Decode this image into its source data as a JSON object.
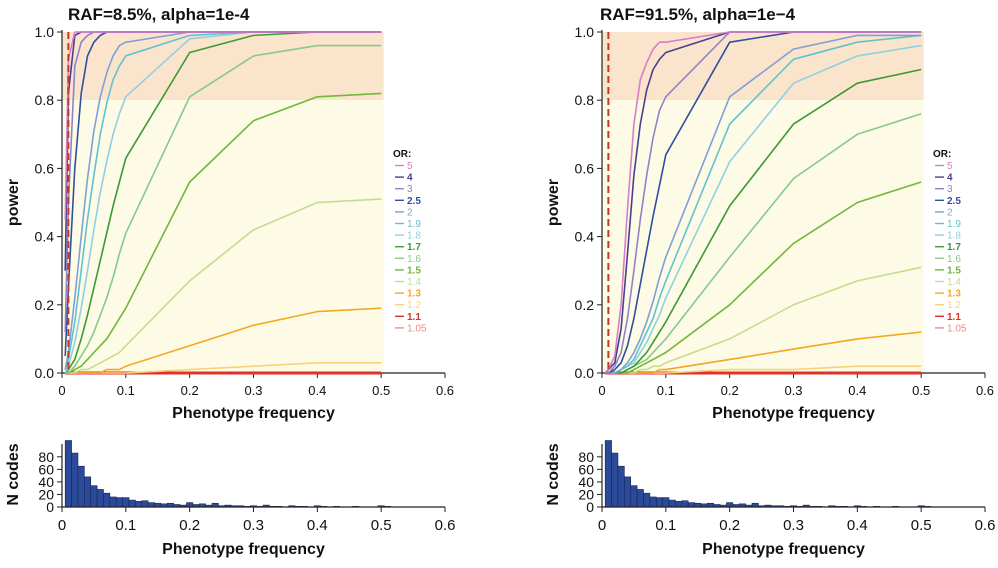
{
  "figure": {
    "panels": [
      {
        "title": "RAF=8.5%, alpha=1e-4"
      },
      {
        "title": "RAF=91.5%, alpha=1e−4"
      }
    ]
  },
  "chart_data": [
    {
      "type": "line",
      "title": "RAF=8.5%, alpha=1e-4",
      "xlabel": "Phenotype frequency",
      "ylabel": "power",
      "xlim": [
        0,
        0.6
      ],
      "ylim": [
        0,
        1.0
      ],
      "xticks": [
        "0",
        "0.1",
        "0.2",
        "0.3",
        "0.4",
        "0.5",
        "0.6"
      ],
      "yticks": [
        "0.0",
        "0.2",
        "0.4",
        "0.6",
        "0.8",
        "1.0"
      ],
      "shaded_bands": [
        {
          "y_from": 0.8,
          "y_to": 1.0,
          "color": "#fbe4cc"
        },
        {
          "y_from": 0.0,
          "y_to": 0.8,
          "color": "#fdfbe6"
        }
      ],
      "vline": {
        "x": 0.01,
        "color": "#c0392b",
        "style": "dashed"
      },
      "legend": {
        "title": "OR:",
        "position": "right"
      },
      "x": [
        0.005,
        0.01,
        0.02,
        0.03,
        0.04,
        0.05,
        0.06,
        0.07,
        0.08,
        0.09,
        0.1,
        0.2,
        0.3,
        0.4,
        0.5
      ],
      "series": [
        {
          "name": "5",
          "color": "#d67fc6",
          "values": [
            0.45,
            0.92,
            1.0,
            1.0,
            1.0,
            1.0,
            1.0,
            1.0,
            1.0,
            1.0,
            1.0,
            1.0,
            1.0,
            1.0,
            1.0
          ]
        },
        {
          "name": "4",
          "color": "#4a3f8f",
          "values": [
            0.3,
            0.82,
            0.99,
            1.0,
            1.0,
            1.0,
            1.0,
            1.0,
            1.0,
            1.0,
            1.0,
            1.0,
            1.0,
            1.0,
            1.0
          ]
        },
        {
          "name": "3",
          "color": "#8e83c9",
          "values": [
            0.12,
            0.5,
            0.9,
            0.97,
            0.99,
            1.0,
            1.0,
            1.0,
            1.0,
            1.0,
            1.0,
            1.0,
            1.0,
            1.0,
            1.0
          ]
        },
        {
          "name": "2.5",
          "color": "#2f4fa0",
          "values": [
            0.05,
            0.25,
            0.6,
            0.82,
            0.93,
            0.97,
            0.99,
            1.0,
            1.0,
            1.0,
            1.0,
            1.0,
            1.0,
            1.0,
            1.0
          ]
        },
        {
          "name": "2",
          "color": "#7f9fd9",
          "values": [
            0.01,
            0.06,
            0.22,
            0.4,
            0.57,
            0.71,
            0.81,
            0.88,
            0.93,
            0.96,
            0.97,
            1.0,
            1.0,
            1.0,
            1.0
          ]
        },
        {
          "name": "1.9",
          "color": "#5fc3cf",
          "values": [
            0.01,
            0.04,
            0.15,
            0.3,
            0.45,
            0.58,
            0.7,
            0.79,
            0.86,
            0.9,
            0.93,
            0.99,
            1.0,
            1.0,
            1.0
          ]
        },
        {
          "name": "1.8",
          "color": "#8fd0e3",
          "values": [
            0.0,
            0.02,
            0.09,
            0.19,
            0.3,
            0.42,
            0.53,
            0.62,
            0.7,
            0.76,
            0.81,
            0.98,
            1.0,
            1.0,
            1.0
          ]
        },
        {
          "name": "1.7",
          "color": "#3a9a34",
          "values": [
            0.0,
            0.01,
            0.04,
            0.1,
            0.17,
            0.25,
            0.33,
            0.41,
            0.49,
            0.56,
            0.63,
            0.94,
            0.99,
            1.0,
            1.0
          ]
        },
        {
          "name": "1.6",
          "color": "#86c98a",
          "values": [
            0.0,
            0.0,
            0.02,
            0.05,
            0.08,
            0.12,
            0.17,
            0.22,
            0.28,
            0.35,
            0.41,
            0.81,
            0.93,
            0.96,
            0.96
          ]
        },
        {
          "name": "1.5",
          "color": "#6fb83a",
          "values": [
            0.0,
            0.0,
            0.01,
            0.02,
            0.04,
            0.06,
            0.08,
            0.1,
            0.13,
            0.16,
            0.19,
            0.56,
            0.74,
            0.81,
            0.82
          ]
        },
        {
          "name": "1.4",
          "color": "#c3dd8c",
          "values": [
            0.0,
            0.0,
            0.0,
            0.01,
            0.01,
            0.02,
            0.03,
            0.04,
            0.05,
            0.06,
            0.08,
            0.27,
            0.42,
            0.5,
            0.51
          ]
        },
        {
          "name": "1.3",
          "color": "#f5a623",
          "values": [
            0.0,
            0.0,
            0.0,
            0.0,
            0.0,
            0.0,
            0.0,
            0.01,
            0.01,
            0.01,
            0.02,
            0.08,
            0.14,
            0.18,
            0.19
          ]
        },
        {
          "name": "1.2",
          "color": "#f8d27a",
          "values": [
            0.0,
            0.0,
            0.0,
            0.0,
            0.0,
            0.0,
            0.0,
            0.0,
            0.0,
            0.0,
            0.0,
            0.01,
            0.02,
            0.03,
            0.03
          ]
        },
        {
          "name": "1.1",
          "color": "#e0302a",
          "values": [
            0.0,
            0.0,
            0.0,
            0.0,
            0.0,
            0.0,
            0.0,
            0.0,
            0.0,
            0.0,
            0.0,
            0.0,
            0.0,
            0.0,
            0.0
          ]
        },
        {
          "name": "1.05",
          "color": "#f08a8a",
          "values": [
            0.0,
            0.0,
            0.0,
            0.0,
            0.0,
            0.0,
            0.0,
            0.0,
            0.0,
            0.0,
            0.0,
            0.0,
            0.0,
            0.0,
            0.0
          ]
        }
      ]
    },
    {
      "type": "line",
      "title": "RAF=91.5%, alpha=1e−4",
      "xlabel": "Phenotype frequency",
      "ylabel": "power",
      "xlim": [
        0,
        0.6
      ],
      "ylim": [
        0,
        1.0
      ],
      "xticks": [
        "0",
        "0.1",
        "0.2",
        "0.3",
        "0.4",
        "0.5",
        "0.6"
      ],
      "yticks": [
        "0.0",
        "0.2",
        "0.4",
        "0.6",
        "0.8",
        "1.0"
      ],
      "shaded_bands": [
        {
          "y_from": 0.8,
          "y_to": 1.0,
          "color": "#fbe4cc"
        },
        {
          "y_from": 0.0,
          "y_to": 0.8,
          "color": "#fdfbe6"
        }
      ],
      "vline": {
        "x": 0.01,
        "color": "#c0392b",
        "style": "dashed"
      },
      "legend": {
        "title": "OR:",
        "position": "right"
      },
      "x": [
        0.005,
        0.01,
        0.02,
        0.03,
        0.04,
        0.05,
        0.06,
        0.07,
        0.08,
        0.09,
        0.1,
        0.2,
        0.3,
        0.4,
        0.5
      ],
      "series": [
        {
          "name": "5",
          "color": "#d67fc6",
          "values": [
            0.0,
            0.01,
            0.05,
            0.2,
            0.48,
            0.73,
            0.86,
            0.91,
            0.95,
            0.97,
            0.97,
            1.0,
            1.0,
            1.0,
            1.0
          ]
        },
        {
          "name": "4",
          "color": "#4a3f8f",
          "values": [
            0.0,
            0.01,
            0.03,
            0.13,
            0.35,
            0.58,
            0.73,
            0.83,
            0.89,
            0.92,
            0.94,
            1.0,
            1.0,
            1.0,
            1.0
          ]
        },
        {
          "name": "3",
          "color": "#8e83c9",
          "values": [
            0.0,
            0.0,
            0.02,
            0.06,
            0.16,
            0.3,
            0.45,
            0.58,
            0.69,
            0.77,
            0.81,
            1.0,
            1.0,
            1.0,
            1.0
          ]
        },
        {
          "name": "2.5",
          "color": "#2f4fa0",
          "values": [
            0.0,
            0.0,
            0.01,
            0.03,
            0.08,
            0.16,
            0.26,
            0.36,
            0.46,
            0.55,
            0.64,
            0.97,
            1.0,
            1.0,
            1.0
          ]
        },
        {
          "name": "2",
          "color": "#7f9fd9",
          "values": [
            0.0,
            0.0,
            0.0,
            0.01,
            0.03,
            0.06,
            0.1,
            0.15,
            0.21,
            0.28,
            0.34,
            0.81,
            0.95,
            0.99,
            0.99
          ]
        },
        {
          "name": "1.9",
          "color": "#5fc3cf",
          "values": [
            0.0,
            0.0,
            0.0,
            0.01,
            0.02,
            0.04,
            0.08,
            0.12,
            0.16,
            0.22,
            0.27,
            0.73,
            0.92,
            0.97,
            0.99
          ]
        },
        {
          "name": "1.8",
          "color": "#8fd0e3",
          "values": [
            0.0,
            0.0,
            0.0,
            0.01,
            0.02,
            0.03,
            0.06,
            0.09,
            0.13,
            0.17,
            0.22,
            0.62,
            0.85,
            0.93,
            0.96
          ]
        },
        {
          "name": "1.7",
          "color": "#3a9a34",
          "values": [
            0.0,
            0.0,
            0.0,
            0.0,
            0.01,
            0.02,
            0.04,
            0.06,
            0.09,
            0.12,
            0.15,
            0.49,
            0.73,
            0.85,
            0.89
          ]
        },
        {
          "name": "1.6",
          "color": "#86c98a",
          "values": [
            0.0,
            0.0,
            0.0,
            0.0,
            0.01,
            0.02,
            0.03,
            0.04,
            0.06,
            0.08,
            0.1,
            0.34,
            0.57,
            0.7,
            0.76
          ]
        },
        {
          "name": "1.5",
          "color": "#6fb83a",
          "values": [
            0.0,
            0.0,
            0.0,
            0.0,
            0.0,
            0.01,
            0.02,
            0.03,
            0.04,
            0.05,
            0.06,
            0.2,
            0.38,
            0.5,
            0.56
          ]
        },
        {
          "name": "1.4",
          "color": "#c3dd8c",
          "values": [
            0.0,
            0.0,
            0.0,
            0.0,
            0.0,
            0.0,
            0.01,
            0.01,
            0.02,
            0.02,
            0.03,
            0.1,
            0.2,
            0.27,
            0.31
          ]
        },
        {
          "name": "1.3",
          "color": "#f5a623",
          "values": [
            0.0,
            0.0,
            0.0,
            0.0,
            0.0,
            0.0,
            0.0,
            0.0,
            0.0,
            0.01,
            0.01,
            0.04,
            0.07,
            0.1,
            0.12
          ]
        },
        {
          "name": "1.2",
          "color": "#f8d27a",
          "values": [
            0.0,
            0.0,
            0.0,
            0.0,
            0.0,
            0.0,
            0.0,
            0.0,
            0.0,
            0.0,
            0.0,
            0.01,
            0.01,
            0.02,
            0.02
          ]
        },
        {
          "name": "1.1",
          "color": "#e0302a",
          "values": [
            0.0,
            0.0,
            0.0,
            0.0,
            0.0,
            0.0,
            0.0,
            0.0,
            0.0,
            0.0,
            0.0,
            0.0,
            0.0,
            0.0,
            0.0
          ]
        },
        {
          "name": "1.05",
          "color": "#f08a8a",
          "values": [
            0.0,
            0.0,
            0.0,
            0.0,
            0.0,
            0.0,
            0.0,
            0.0,
            0.0,
            0.0,
            0.0,
            0.0,
            0.0,
            0.0,
            0.0
          ]
        }
      ]
    },
    {
      "type": "bar",
      "title": "",
      "xlabel": "Phenotype frequency",
      "ylabel": "N codes",
      "xlim": [
        0,
        0.6
      ],
      "ylim": [
        0,
        110
      ],
      "xticks": [
        "0",
        "0.1",
        "0.2",
        "0.3",
        "0.4",
        "0.5",
        "0.6"
      ],
      "yticks": [
        "0",
        "20",
        "40",
        "60",
        "80"
      ],
      "bar_color": "#2c4a9a",
      "bin_width": 0.01,
      "x": [
        0.01,
        0.02,
        0.03,
        0.04,
        0.05,
        0.06,
        0.07,
        0.08,
        0.09,
        0.1,
        0.11,
        0.12,
        0.13,
        0.14,
        0.15,
        0.16,
        0.17,
        0.18,
        0.19,
        0.2,
        0.21,
        0.22,
        0.23,
        0.24,
        0.25,
        0.26,
        0.27,
        0.28,
        0.29,
        0.3,
        0.31,
        0.32,
        0.33,
        0.34,
        0.35,
        0.36,
        0.37,
        0.38,
        0.39,
        0.4,
        0.41,
        0.42,
        0.43,
        0.44,
        0.45,
        0.46,
        0.47,
        0.48,
        0.49,
        0.5,
        0.51
      ],
      "values": [
        106,
        86,
        65,
        48,
        34,
        28,
        22,
        16,
        15,
        15,
        11,
        9,
        10,
        7,
        6,
        5,
        6,
        4,
        3,
        7,
        4,
        5,
        3,
        6,
        2,
        3,
        2,
        2,
        1,
        2,
        1,
        3,
        1,
        1,
        0,
        2,
        1,
        1,
        0,
        2,
        1,
        0,
        1,
        0,
        0,
        1,
        0,
        0,
        0,
        2,
        1
      ]
    },
    {
      "type": "bar",
      "title": "",
      "xlabel": "Phenotype frequency",
      "ylabel": "N codes",
      "xlim": [
        0,
        0.6
      ],
      "ylim": [
        0,
        110
      ],
      "xticks": [
        "0",
        "0.1",
        "0.2",
        "0.3",
        "0.4",
        "0.5",
        "0.6"
      ],
      "yticks": [
        "0",
        "20",
        "40",
        "60",
        "80"
      ],
      "bar_color": "#2c4a9a",
      "bin_width": 0.01,
      "x": [
        0.01,
        0.02,
        0.03,
        0.04,
        0.05,
        0.06,
        0.07,
        0.08,
        0.09,
        0.1,
        0.11,
        0.12,
        0.13,
        0.14,
        0.15,
        0.16,
        0.17,
        0.18,
        0.19,
        0.2,
        0.21,
        0.22,
        0.23,
        0.24,
        0.25,
        0.26,
        0.27,
        0.28,
        0.29,
        0.3,
        0.31,
        0.32,
        0.33,
        0.34,
        0.35,
        0.36,
        0.37,
        0.38,
        0.39,
        0.4,
        0.41,
        0.42,
        0.43,
        0.44,
        0.45,
        0.46,
        0.47,
        0.48,
        0.49,
        0.5,
        0.51
      ],
      "values": [
        106,
        86,
        65,
        48,
        34,
        28,
        22,
        16,
        15,
        15,
        11,
        9,
        10,
        7,
        6,
        5,
        6,
        4,
        3,
        7,
        4,
        5,
        3,
        6,
        2,
        3,
        2,
        2,
        1,
        2,
        1,
        3,
        1,
        1,
        0,
        2,
        1,
        1,
        0,
        2,
        1,
        0,
        1,
        0,
        0,
        1,
        0,
        0,
        0,
        2,
        1
      ]
    }
  ]
}
